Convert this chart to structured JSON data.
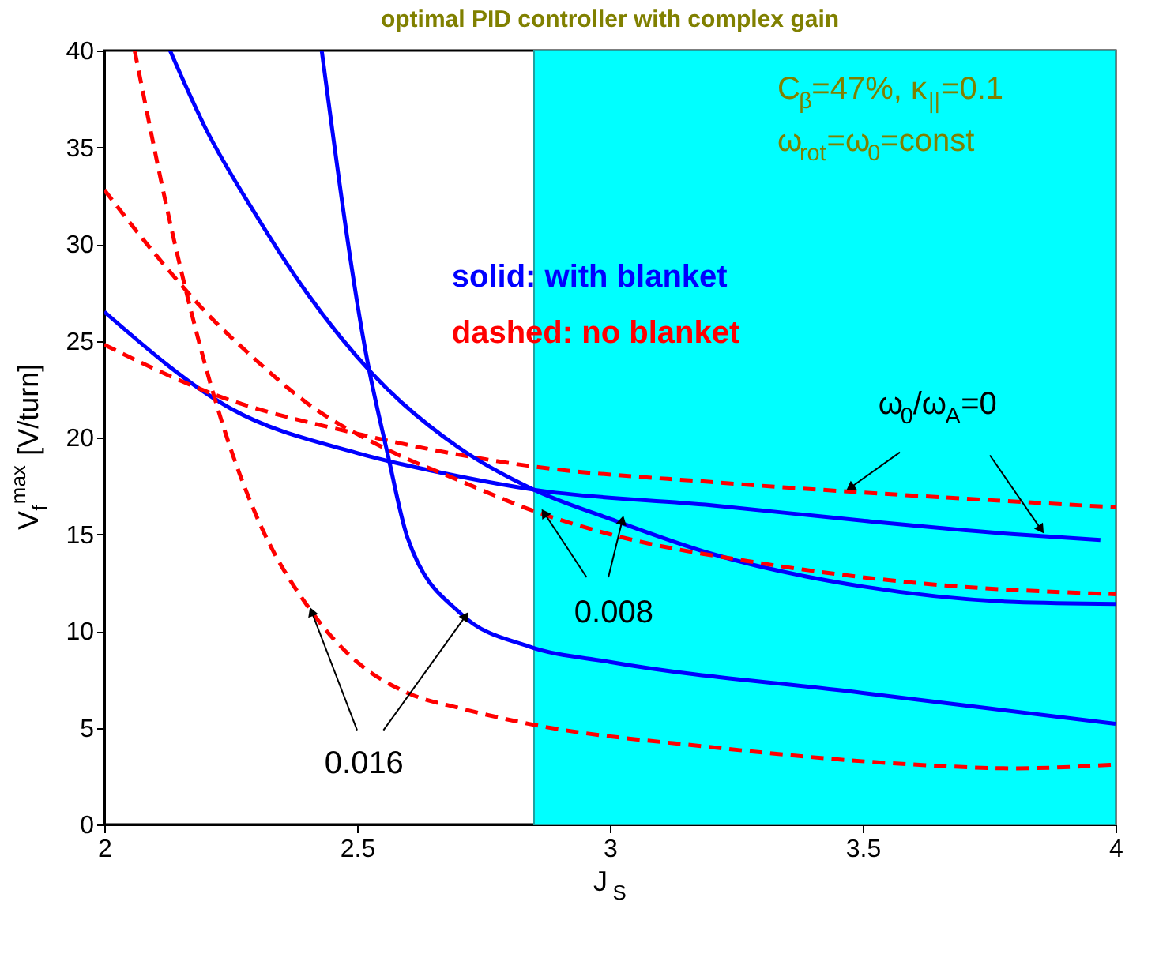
{
  "chart_data": {
    "type": "line",
    "title": "optimal PID controller with complex gain",
    "xlabel": "J$_{S}$",
    "ylabel": "V$_{f}$$^{max}$ [V/turn]",
    "xlim": [
      2,
      4
    ],
    "ylim": [
      0,
      40
    ],
    "xticks": [
      2,
      2.5,
      3,
      3.5,
      4
    ],
    "yticks": [
      0,
      5,
      10,
      15,
      20,
      25,
      30,
      35,
      40
    ],
    "grid": false,
    "marker": "none",
    "series": [
      {
        "color": "#0000ff",
        "line_style": "solid",
        "x": [
          2,
          2.25,
          2.5,
          2.7,
          2.85,
          3.2,
          3.5,
          3.8,
          3.97
        ],
        "values": [
          26.5,
          21.5,
          19.2,
          18.0,
          17.3,
          16.5,
          15.7,
          15.0,
          14.7
        ]
      },
      {
        "color": "#ff0000",
        "line_style": "dashed",
        "x": [
          2,
          2.22,
          2.5,
          2.85,
          3.2,
          3.6,
          4
        ],
        "values": [
          24.8,
          22.2,
          20.2,
          18.5,
          17.7,
          17.0,
          16.4
        ]
      },
      {
        "color": "#0000ff",
        "line_style": "solid",
        "x": [
          2.13,
          2.2,
          2.3,
          2.4,
          2.53,
          2.7,
          2.85,
          3.0,
          3.2,
          3.5,
          3.8,
          4
        ],
        "values": [
          40,
          36,
          31.5,
          27.5,
          23.3,
          19.5,
          17.3,
          15.8,
          14.0,
          12.3,
          11.5,
          11.4
        ]
      },
      {
        "color": "#ff0000",
        "line_style": "dashed",
        "x": [
          2,
          2.1,
          2.2,
          2.3,
          2.4,
          2.55,
          2.7,
          2.85,
          3.0,
          3.3,
          3.6,
          4
        ],
        "values": [
          32.8,
          29.5,
          26.5,
          24.0,
          21.8,
          19.5,
          17.8,
          16.2,
          15.0,
          13.5,
          12.5,
          11.9
        ]
      },
      {
        "color": "#0000ff",
        "line_style": "solid",
        "x": [
          2.43,
          2.52,
          2.56,
          2.6,
          2.705,
          2.84,
          3.0,
          3.5,
          4
        ],
        "values": [
          40,
          24.0,
          19.2,
          14.8,
          10.9,
          9.2,
          8.4,
          6.8,
          5.2
        ]
      },
      {
        "color": "#ff0000",
        "line_style": "dashed",
        "x": [
          2.06,
          2.145,
          2.245,
          2.3,
          2.41,
          2.5,
          2.6,
          2.705,
          2.84,
          3.2,
          3.6,
          3.8,
          4
        ],
        "values": [
          40,
          29.4,
          19.8,
          16.0,
          11.0,
          8.4,
          6.8,
          6.0,
          5.2,
          4.0,
          3.1,
          2.9,
          3.1
        ]
      }
    ],
    "bands": [
      {
        "axis": "x",
        "from": 2.85,
        "to": 4,
        "color": "#00ffff"
      }
    ],
    "annotations": [
      "C$_{β}$=47%, κ$_{||}$=0.1",
      "ω$_{rot}$=ω$_{0}$=const",
      "solid: with blanket",
      "dashed: no blanket",
      {
        "text": "ω$_{0}$/ω$_{A}$=0",
        "x": 3.475,
        "y": 17.4
      },
      {
        "text": "0.008",
        "x": 2.87,
        "y": 16.1
      },
      {
        "text": "0.016",
        "x": 2.41,
        "y": 11.0
      }
    ]
  }
}
